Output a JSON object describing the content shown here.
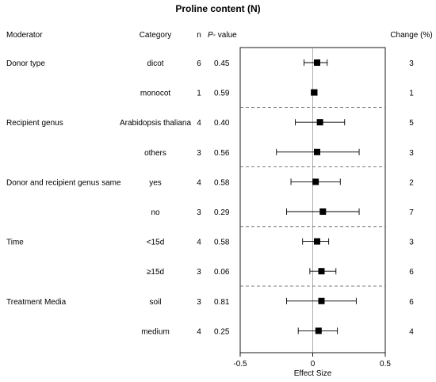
{
  "chart_data": {
    "type": "forest",
    "title": "Proline content (N)",
    "xlabel": "Effect Size",
    "xlim": [
      -0.5,
      0.5
    ],
    "xticks": [
      -0.5,
      0,
      0.5
    ],
    "xtick_labels": [
      "-0.5",
      "0",
      "0.5"
    ],
    "headers": {
      "moderator": "Moderator",
      "category": "Category",
      "n": "n",
      "p_italic": "P",
      "p_rest": "- value",
      "change": "Change (%)"
    },
    "groups": [
      {
        "moderator": "Donor type",
        "rows": [
          0,
          1
        ]
      },
      {
        "moderator": "Recipient genus",
        "rows": [
          2,
          3
        ]
      },
      {
        "moderator": "Donor and recipient genus same",
        "rows": [
          4,
          5
        ]
      },
      {
        "moderator": "Time",
        "rows": [
          6,
          7
        ]
      },
      {
        "moderator": "Treatment Media",
        "rows": [
          8,
          9
        ]
      }
    ],
    "rows": [
      {
        "category": "dicot",
        "n": "6",
        "p": "0.45",
        "estimate": 0.03,
        "lower": -0.06,
        "upper": 0.1,
        "change": "3"
      },
      {
        "category": "monocot",
        "n": "1",
        "p": "0.59",
        "estimate": 0.01,
        "lower": -0.01,
        "upper": 0.03,
        "change": "1"
      },
      {
        "category": "Arabidopsis thaliana",
        "n": "4",
        "p": "0.40",
        "estimate": 0.05,
        "lower": -0.12,
        "upper": 0.22,
        "change": "5"
      },
      {
        "category": "others",
        "n": "3",
        "p": "0.56",
        "estimate": 0.03,
        "lower": -0.25,
        "upper": 0.32,
        "change": "3"
      },
      {
        "category": "yes",
        "n": "4",
        "p": "0.58",
        "estimate": 0.02,
        "lower": -0.15,
        "upper": 0.19,
        "change": "2"
      },
      {
        "category": "no",
        "n": "3",
        "p": "0.29",
        "estimate": 0.07,
        "lower": -0.18,
        "upper": 0.32,
        "change": "7"
      },
      {
        "category": "<15d",
        "n": "4",
        "p": "0.58",
        "estimate": 0.03,
        "lower": -0.07,
        "upper": 0.11,
        "change": "3"
      },
      {
        "category": "≥15d",
        "n": "3",
        "p": "0.06",
        "estimate": 0.06,
        "lower": -0.02,
        "upper": 0.16,
        "change": "6"
      },
      {
        "category": "soil",
        "n": "3",
        "p": "0.81",
        "estimate": 0.06,
        "lower": -0.18,
        "upper": 0.3,
        "change": "6"
      },
      {
        "category": "medium",
        "n": "4",
        "p": "0.25",
        "estimate": 0.04,
        "lower": -0.1,
        "upper": 0.17,
        "change": "4"
      }
    ],
    "zero_line": true,
    "group_separators": "dashed",
    "marker": "square"
  }
}
